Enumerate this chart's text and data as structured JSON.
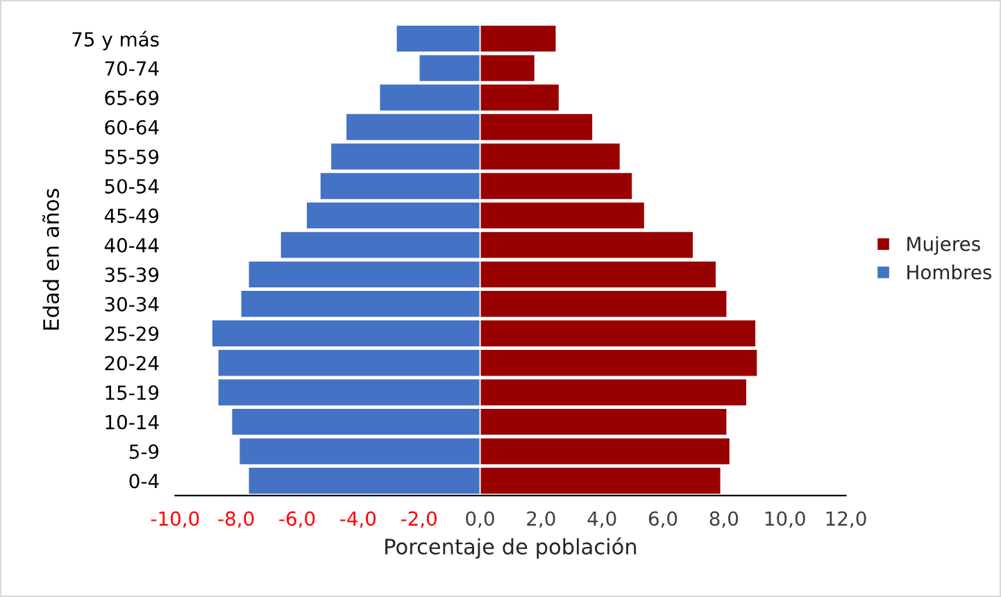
{
  "chart_data": {
    "type": "bar",
    "orientation": "horizontal",
    "stacked": true,
    "xlabel": "Porcentaje de población",
    "ylabel": "Edad en años",
    "categories": [
      "75 y más",
      "70-74",
      "65-69",
      "60-64",
      "55-59",
      "50-54",
      "45-49",
      "40-44",
      "35-39",
      "30-34",
      "25-29",
      "20-24",
      "15-19",
      "10-14",
      "5-9",
      "0-4"
    ],
    "series": [
      {
        "name": "Mujeres",
        "color": "#990000",
        "values": [
          2.5,
          1.8,
          2.6,
          3.7,
          4.6,
          5.0,
          5.4,
          7.0,
          7.75,
          8.1,
          9.05,
          9.1,
          8.75,
          8.1,
          8.2,
          7.9
        ]
      },
      {
        "name": "Hombres",
        "color": "#4472c4",
        "values": [
          -2.75,
          -2.0,
          -3.3,
          -4.4,
          -4.9,
          -5.25,
          -5.7,
          -6.55,
          -7.6,
          -7.85,
          -8.8,
          -8.6,
          -8.6,
          -8.15,
          -7.9,
          -7.6
        ]
      }
    ],
    "xlim": [
      -10,
      12
    ],
    "xticks": [
      {
        "value": -10,
        "label": "-10,0"
      },
      {
        "value": -8,
        "label": "-8,0"
      },
      {
        "value": -6,
        "label": "-6,0"
      },
      {
        "value": -4,
        "label": "-4,0"
      },
      {
        "value": -2,
        "label": "-2,0"
      },
      {
        "value": 0,
        "label": "0,0"
      },
      {
        "value": 2,
        "label": "2,0"
      },
      {
        "value": 4,
        "label": "4,0"
      },
      {
        "value": 6,
        "label": "6,0"
      },
      {
        "value": 8,
        "label": "8,0"
      },
      {
        "value": 10,
        "label": "10,0"
      },
      {
        "value": 12,
        "label": "12,0"
      }
    ],
    "grid": false,
    "legend": "right"
  }
}
